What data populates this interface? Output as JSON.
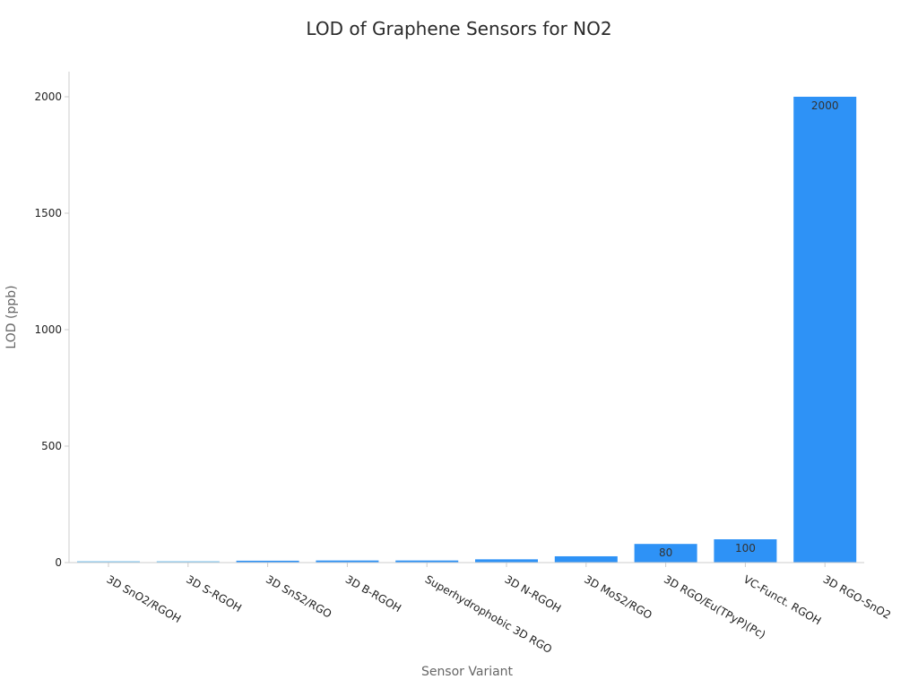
{
  "chart_data": {
    "type": "bar",
    "title": "LOD of Graphene Sensors for NO2",
    "xlabel": "Sensor Variant",
    "ylabel": "LOD (ppb)",
    "categories": [
      "3D SnO2/RGOH",
      "3D S-RGOH",
      "3D SnS2/RGO",
      "3D B-RGOH",
      "Superhydrophobic 3D RGO",
      "3D N-RGOH",
      "3D MoS2/RGO",
      "3D RGO/Eu(TPyP)(Pc)",
      "VC-Funct. RGOH",
      "3D RGO-SnO2"
    ],
    "values": [
      2,
      4,
      8,
      9,
      9,
      14,
      27,
      80,
      100,
      2000
    ],
    "data_labels": [
      "",
      "",
      "",
      "",
      "",
      "",
      "",
      "80",
      "100",
      "2000"
    ],
    "ylim": [
      0,
      2100
    ],
    "yticks": [
      0,
      500,
      1000,
      1500,
      2000
    ],
    "grid": false,
    "colors": {
      "bar": "#2e92f6",
      "bar_light": "#7cc4ef",
      "axis": "#cccccc",
      "tick_text": "#222222",
      "label_text": "#333333"
    }
  }
}
